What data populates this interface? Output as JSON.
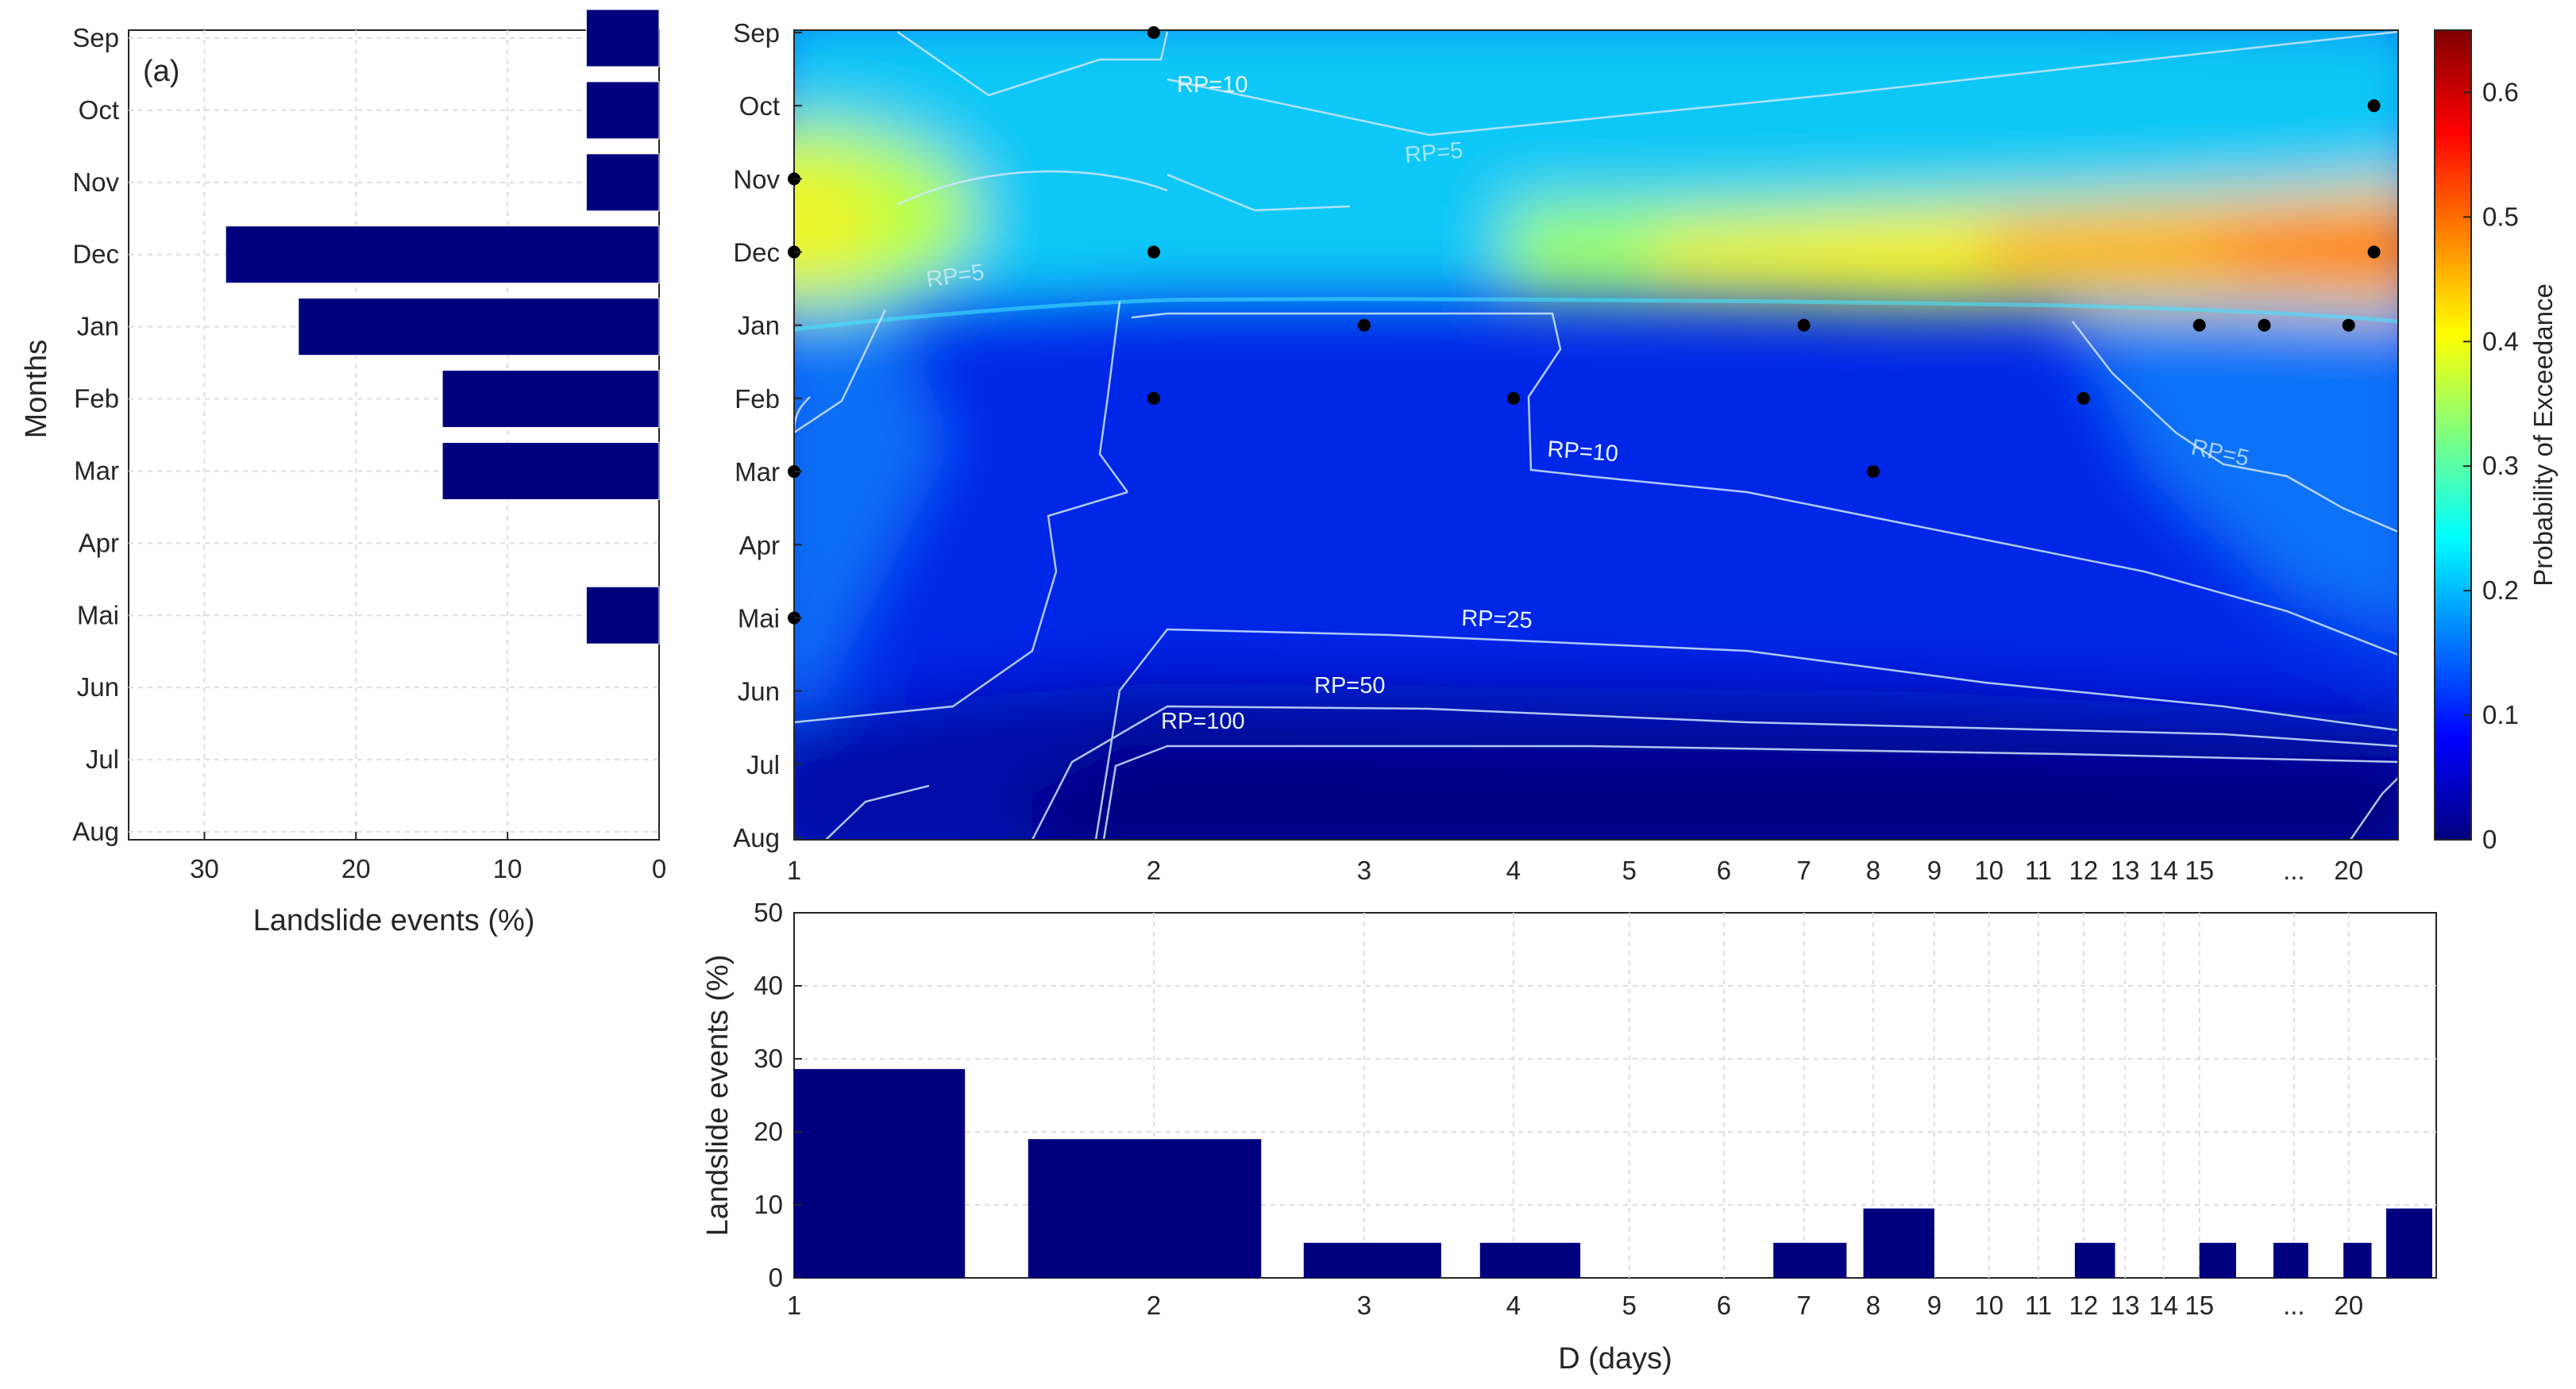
{
  "colors": {
    "bar": "#00007f",
    "frame": "#262626",
    "grid": "#dddddd",
    "contour": "#cfe6ff",
    "colormap": [
      "#00007f",
      "#0000ff",
      "#007fff",
      "#00ffff",
      "#7fff7f",
      "#ffff00",
      "#ff7f00",
      "#ff0000",
      "#7f0000"
    ]
  },
  "chart_data": [
    {
      "id": "months_histogram",
      "type": "bar",
      "orientation": "horizontal",
      "panel_label": "(a)",
      "title": "",
      "xlabel": "Landslide events (%)",
      "ylabel": "Months",
      "categories": [
        "Sep",
        "Oct",
        "Nov",
        "Dec",
        "Jan",
        "Feb",
        "Mar",
        "Apr",
        "Mai",
        "Jun",
        "Jul",
        "Aug"
      ],
      "values": [
        4.8,
        4.8,
        4.8,
        28.6,
        23.8,
        14.3,
        14.3,
        0,
        4.8,
        0,
        0,
        0
      ],
      "xlim": [
        35,
        0
      ],
      "xticks": [
        "30",
        "20",
        "10",
        "0"
      ],
      "grid": true
    },
    {
      "id": "exceedance_map",
      "type": "heatmap",
      "title": "",
      "xlabel": "",
      "ylabel": "",
      "y_categories": [
        "Sep",
        "Oct",
        "Nov",
        "Dec",
        "Jan",
        "Feb",
        "Mar",
        "Apr",
        "Mai",
        "Jun",
        "Jul",
        "Aug"
      ],
      "x_tick_labels": [
        "1",
        "2",
        "3",
        "4",
        "5",
        "6",
        "7",
        "8",
        "9",
        "10",
        "11",
        "12",
        "13",
        "14",
        "15",
        "...",
        "20"
      ],
      "colorbar": {
        "label": "Probability of Exceedance",
        "range": [
          0,
          0.65
        ],
        "ticks": [
          "0",
          "0.1",
          "0.2",
          "0.3",
          "0.4",
          "0.5",
          "0.6"
        ]
      },
      "contour_labels": [
        "RP=10",
        "RP=5",
        "RP=5",
        "RP=10",
        "RP=5",
        "RP=25",
        "RP=50",
        "RP=100"
      ],
      "events": [
        {
          "month": "Sep",
          "d": 2
        },
        {
          "month": "Oct",
          "d": 21
        },
        {
          "month": "Nov",
          "d": 1
        },
        {
          "month": "Dec",
          "d": 1
        },
        {
          "month": "Dec",
          "d": 2
        },
        {
          "month": "Dec",
          "d": 21
        },
        {
          "month": "Jan",
          "d": 3
        },
        {
          "month": "Jan",
          "d": 7
        },
        {
          "month": "Jan",
          "d": 15
        },
        {
          "month": "Jan",
          "d": 17
        },
        {
          "month": "Jan",
          "d": 20
        },
        {
          "month": "Feb",
          "d": 2
        },
        {
          "month": "Feb",
          "d": 4
        },
        {
          "month": "Feb",
          "d": 12
        },
        {
          "month": "Mar",
          "d": 1
        },
        {
          "month": "Mar",
          "d": 8
        },
        {
          "month": "Mai",
          "d": 1
        }
      ]
    },
    {
      "id": "duration_histogram",
      "type": "bar",
      "title": "",
      "xlabel": "D (days)",
      "ylabel": "Landslide events (%)",
      "categories": [
        "1",
        "2",
        "3",
        "4",
        "7",
        "8",
        "12",
        "15",
        "17",
        "20",
        "21"
      ],
      "values": [
        28.6,
        19.0,
        4.8,
        4.8,
        4.8,
        9.5,
        4.8,
        4.8,
        4.8,
        4.8,
        9.5
      ],
      "ylim": [
        0,
        50
      ],
      "yticks": [
        "0",
        "10",
        "20",
        "30",
        "40",
        "50"
      ],
      "x_tick_labels": [
        "1",
        "2",
        "3",
        "4",
        "5",
        "6",
        "7",
        "8",
        "9",
        "10",
        "11",
        "12",
        "13",
        "14",
        "15",
        "...",
        "20"
      ],
      "grid": true
    }
  ]
}
